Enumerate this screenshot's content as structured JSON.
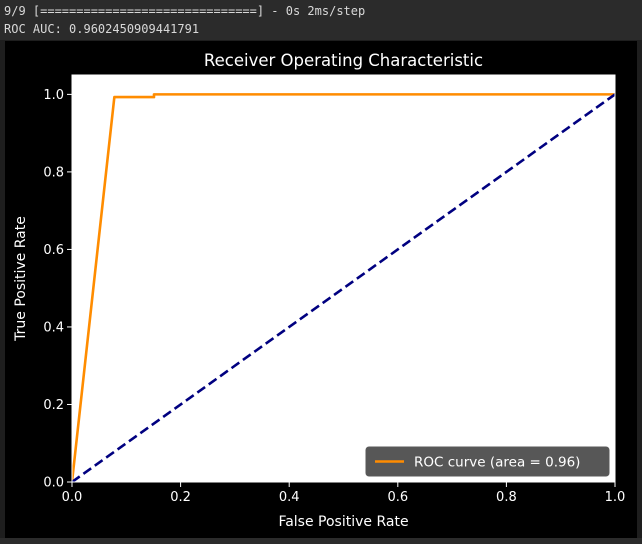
{
  "console": {
    "progress_line": "9/9 [==============================] - 0s 2ms/step",
    "auc_line": "ROC AUC: 0.9602450909441791"
  },
  "colors": {
    "figure_bg": "#000000",
    "axes_bg": "#ffffff",
    "text": "#ffffff",
    "roc_curve": "#ff8c00",
    "diagonal": "#000080"
  },
  "chart_data": {
    "type": "line",
    "title": "Receiver Operating Characteristic",
    "xlabel": "False Positive Rate",
    "ylabel": "True Positive Rate",
    "xlim": [
      0.0,
      1.0
    ],
    "ylim": [
      0.0,
      1.05
    ],
    "xticks": [
      0.0,
      0.2,
      0.4,
      0.6,
      0.8,
      1.0
    ],
    "yticks": [
      0.0,
      0.2,
      0.4,
      0.6,
      0.8,
      1.0
    ],
    "xtick_labels": [
      "0.0",
      "0.2",
      "0.4",
      "0.6",
      "0.8",
      "1.0"
    ],
    "ytick_labels": [
      "0.0",
      "0.2",
      "0.4",
      "0.6",
      "0.8",
      "1.0"
    ],
    "grid": false,
    "legend_position": "lower right",
    "series": [
      {
        "name": "ROC curve (area = 0.96)",
        "color": "#ff8c00",
        "linestyle": "solid",
        "x": [
          0.0,
          0.078,
          0.151,
          0.151,
          1.0
        ],
        "y": [
          0.0,
          0.993,
          0.993,
          1.0,
          1.0
        ]
      },
      {
        "color": "#000080",
        "linestyle": "dashed",
        "x": [
          0.0,
          1.0
        ],
        "y": [
          0.0,
          1.0
        ]
      }
    ]
  }
}
